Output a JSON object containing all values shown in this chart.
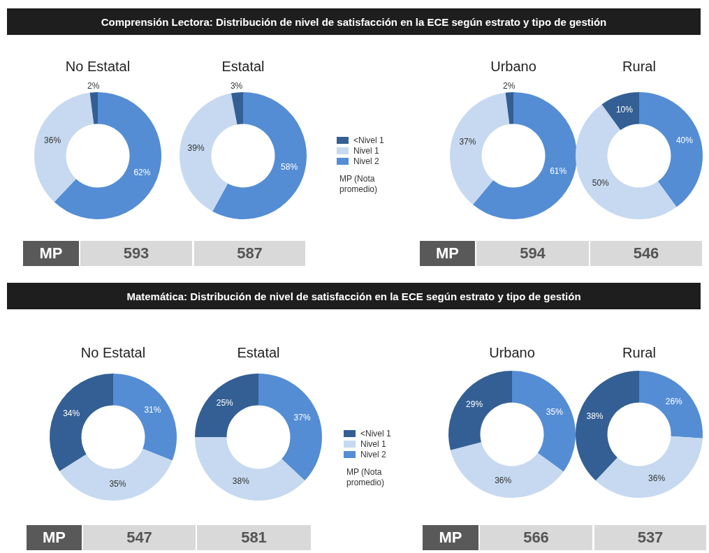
{
  "chart_data": [
    {
      "type": "other",
      "title": "Comprensión Lectora: Distribución de nivel de satisfacción en la ECE según estrato y tipo de gestión"
    },
    {
      "type": "donut",
      "title": "No Estatal",
      "values": [
        2,
        36,
        62
      ],
      "value_labels": [
        "2%",
        "36%",
        "62%"
      ],
      "colors": [
        "#335f94",
        "#c6d9f0",
        "#548dd4"
      ],
      "annotations": [
        "MP",
        "593"
      ]
    },
    {
      "type": "donut",
      "title": "Estatal",
      "categories": [
        "<Nivel 1",
        "Nivel 1",
        "Nivel 2"
      ],
      "values": [
        3,
        39,
        58
      ],
      "value_labels": [
        "3%",
        "39%",
        "58%"
      ],
      "colors": [
        "#335f94",
        "#c6d9f0",
        "#548dd4"
      ],
      "legend": "right",
      "annotations": [
        "587",
        "MP (Nota promedio)"
      ]
    },
    {
      "type": "donut",
      "title": "Urbano",
      "values": [
        2,
        37,
        61
      ],
      "value_labels": [
        "2%",
        "37%",
        "61%"
      ],
      "colors": [
        "#335f94",
        "#c6d9f0",
        "#548dd4"
      ],
      "annotations": [
        "MP",
        "594"
      ]
    },
    {
      "type": "donut",
      "title": "Rural",
      "values": [
        10,
        50,
        40
      ],
      "value_labels": [
        "10%",
        "50%",
        "40%"
      ],
      "colors": [
        "#335f94",
        "#c6d9f0",
        "#548dd4"
      ],
      "annotations": [
        "546"
      ]
    },
    {
      "type": "other",
      "title": "Matemática: Distribución de nivel de satisfacción en la ECE según estrato y tipo de gestión"
    },
    {
      "type": "donut",
      "title": "No Estatal",
      "values": [
        34,
        35,
        31
      ],
      "value_labels": [
        "34%",
        "35%",
        "31%"
      ],
      "colors": [
        "#335f94",
        "#c6d9f0",
        "#548dd4"
      ],
      "annotations": [
        "MP",
        "547"
      ]
    },
    {
      "type": "donut",
      "title": "Estatal",
      "categories": [
        "<Nivel 1",
        "Nivel 1",
        "Nivel 2"
      ],
      "values": [
        25,
        38,
        37
      ],
      "value_labels": [
        "25%",
        "38%",
        "37%"
      ],
      "colors": [
        "#335f94",
        "#c6d9f0",
        "#548dd4"
      ],
      "legend": "right",
      "annotations": [
        "581",
        "MP (Nota promedio)"
      ]
    },
    {
      "type": "donut",
      "title": "Urbano",
      "values": [
        29,
        36,
        35
      ],
      "value_labels": [
        "29%",
        "36%",
        "35%"
      ],
      "colors": [
        "#335f94",
        "#c6d9f0",
        "#548dd4"
      ],
      "annotations": [
        "MP",
        "566"
      ]
    },
    {
      "type": "donut",
      "title": "Rural",
      "values": [
        38,
        36,
        26
      ],
      "value_labels": [
        "38%",
        "36%",
        "26%"
      ],
      "colors": [
        "#335f94",
        "#c6d9f0",
        "#548dd4"
      ],
      "annotations": [
        "537"
      ]
    }
  ]
}
